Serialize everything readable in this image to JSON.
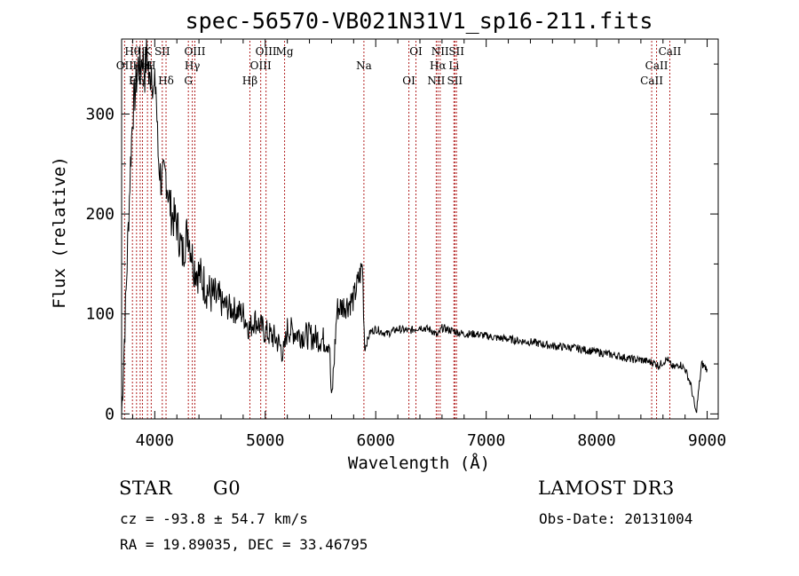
{
  "chart_data": {
    "type": "line",
    "title": "spec-56570-VB021N31V1_sp16-211.fits",
    "xlabel": "Wavelength (Å)",
    "ylabel": "Flux (relative)",
    "xlim": [
      3700,
      9100
    ],
    "ylim": [
      -5,
      375
    ],
    "xticks": [
      4000,
      5000,
      6000,
      7000,
      8000,
      9000
    ],
    "yticks": [
      0,
      100,
      200,
      300
    ],
    "line_color": "#000000",
    "marker_color": "#b22222",
    "series": [
      {
        "name": "flux",
        "x": [
          3700,
          3740,
          3780,
          3800,
          3830,
          3850,
          3870,
          3890,
          3910,
          3930,
          3950,
          3970,
          3990,
          4010,
          4030,
          4060,
          4100,
          4150,
          4200,
          4250,
          4300,
          4350,
          4400,
          4450,
          4500,
          4600,
          4700,
          4800,
          4860,
          4900,
          5000,
          5100,
          5170,
          5200,
          5300,
          5400,
          5500,
          5580,
          5600,
          5650,
          5700,
          5750,
          5800,
          5830,
          5860,
          5880,
          5900,
          5950,
          6000,
          6100,
          6200,
          6300,
          6400,
          6500,
          6560,
          6600,
          6700,
          6800,
          6900,
          7000,
          7100,
          7200,
          7300,
          7400,
          7500,
          7600,
          7700,
          7800,
          7900,
          8000,
          8100,
          8200,
          8300,
          8400,
          8480,
          8500,
          8540,
          8560,
          8600,
          8640,
          8660,
          8700,
          8750,
          8800,
          8850,
          8900,
          8950,
          9000
        ],
        "y": [
          0,
          120,
          250,
          300,
          330,
          350,
          345,
          360,
          340,
          365,
          330,
          350,
          320,
          330,
          260,
          230,
          240,
          200,
          190,
          160,
          185,
          150,
          140,
          130,
          120,
          110,
          105,
          100,
          85,
          95,
          82,
          75,
          60,
          85,
          80,
          78,
          75,
          72,
          10,
          105,
          108,
          110,
          115,
          128,
          140,
          150,
          65,
          82,
          85,
          80,
          85,
          83,
          87,
          84,
          78,
          86,
          83,
          80,
          80,
          78,
          76,
          75,
          73,
          72,
          70,
          68,
          67,
          66,
          64,
          62,
          60,
          58,
          55,
          54,
          52,
          52,
          50,
          48,
          52,
          55,
          50,
          46,
          50,
          45,
          30,
          0,
          50,
          45
        ]
      }
    ],
    "lines": [
      {
        "label": "Hθ",
        "x": 3798
      },
      {
        "label": "OII",
        "x": 3727
      },
      {
        "label": "OIII",
        "x": 3868
      },
      {
        "label": "K",
        "x": 3934
      },
      {
        "label": "HeI",
        "x": 3889
      },
      {
        "label": "Hη",
        "x": 3835
      },
      {
        "label": "SII",
        "x": 4068
      },
      {
        "label": "H",
        "x": 3968
      },
      {
        "label": "Hδ",
        "x": 4102
      },
      {
        "label": "OIII",
        "x": 4363
      },
      {
        "label": "Hγ",
        "x": 4340
      },
      {
        "label": "G",
        "x": 4304
      },
      {
        "label": "OIII",
        "x": 5007
      },
      {
        "label": "OIII",
        "x": 4959
      },
      {
        "label": "Hβ",
        "x": 4861
      },
      {
        "label": "Mg",
        "x": 5175
      },
      {
        "label": "Na",
        "x": 5893
      },
      {
        "label": "OI",
        "x": 6300
      },
      {
        "label": "OI",
        "x": 6364
      },
      {
        "label": "Hα",
        "x": 6563
      },
      {
        "label": "SII",
        "x": 6716
      },
      {
        "label": "NII",
        "x": 6583
      },
      {
        "label": "Li",
        "x": 6708
      },
      {
        "label": "NII",
        "x": 6548
      },
      {
        "label": "SII",
        "x": 6731
      },
      {
        "label": "CaII",
        "x": 8542
      },
      {
        "label": "CaII",
        "x": 8498
      },
      {
        "label": "CaII",
        "x": 8662
      }
    ]
  },
  "annotations": {
    "class": "STAR",
    "subclass": "G0",
    "survey": "LAMOST DR3",
    "cz": "cz = -93.8 ± 54.7 km/s",
    "obs_date": "Obs-Date: 20131004",
    "coords": "RA =  19.89035, DEC =  33.46795"
  }
}
